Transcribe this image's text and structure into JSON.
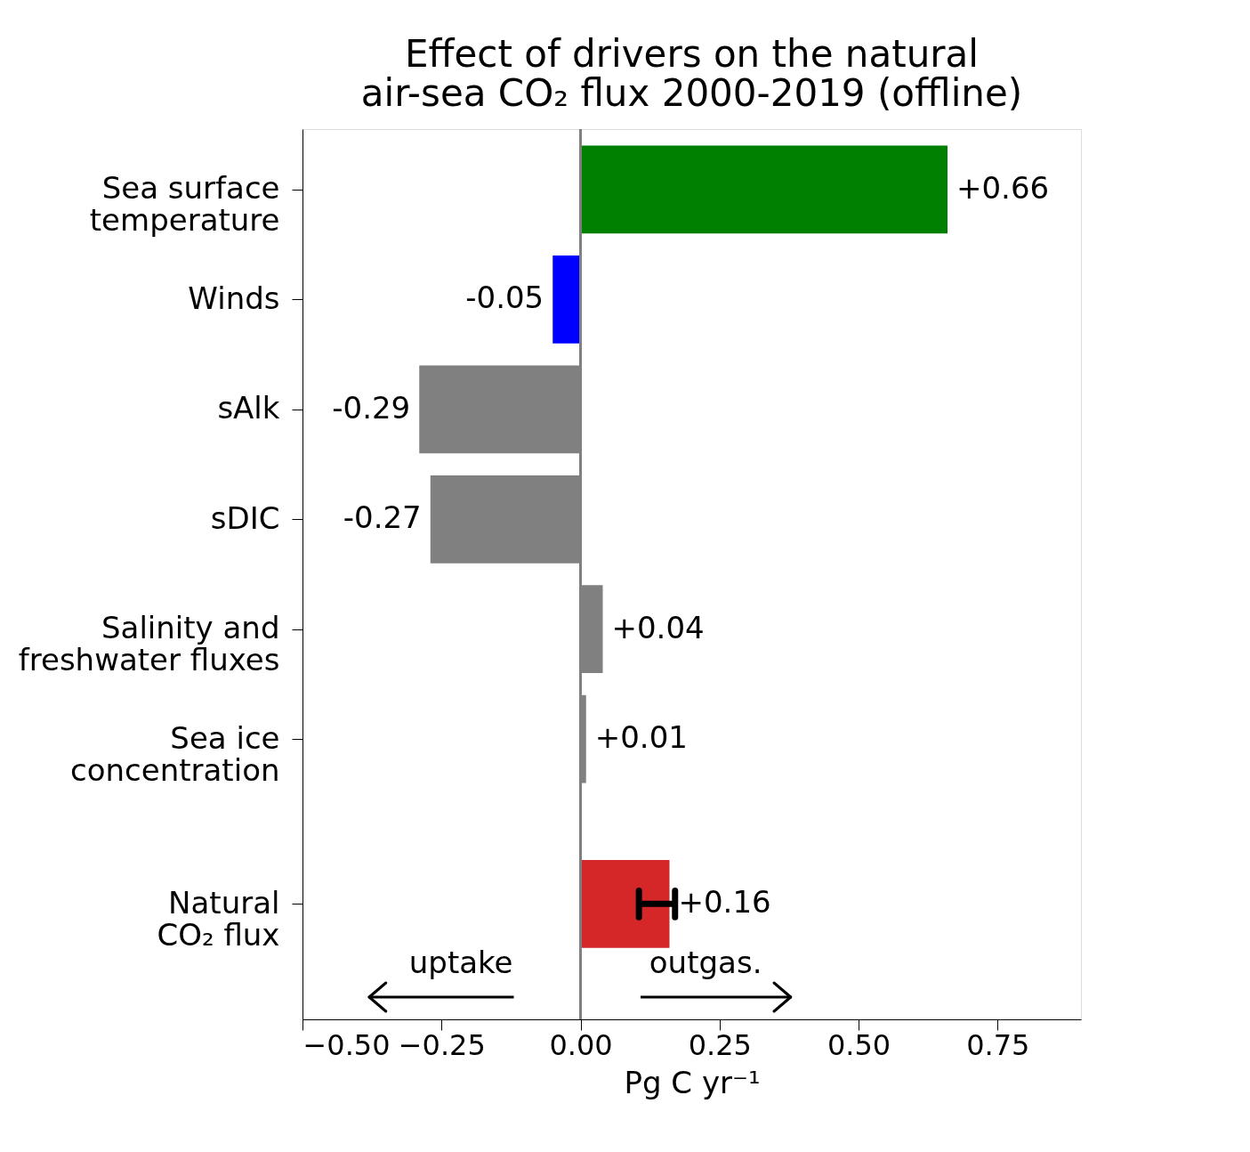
{
  "chart_data": {
    "type": "bar",
    "orientation": "horizontal",
    "title": "Effect of drivers on the natural\nair-sea CO₂ flux 2000-2019 (offline)",
    "xlabel": "Pg C yr⁻¹",
    "categories": [
      "Sea surface\ntemperature",
      "Winds",
      "sAlk",
      "sDIC",
      "Salinity and\nfreshwater fluxes",
      "Sea ice\nconcentration",
      "Natural\nCO₂ flux"
    ],
    "values": [
      0.66,
      -0.05,
      -0.29,
      -0.27,
      0.04,
      0.01,
      0.16
    ],
    "colors": [
      "#008000",
      "#0000ff",
      "#808080",
      "#808080",
      "#808080",
      "#808080",
      "#d62728"
    ],
    "value_labels": [
      "+0.66",
      "-0.05",
      "-0.29",
      "-0.27",
      "+0.04",
      "+0.01",
      "+0.16"
    ],
    "errors": [
      null,
      null,
      null,
      null,
      null,
      null,
      [
        0.105,
        0.17
      ]
    ],
    "xlim": [
      -0.5,
      0.9
    ],
    "xticks": [
      {
        "value": -0.5,
        "label": "−0.50"
      },
      {
        "value": -0.25,
        "label": "−0.25"
      },
      {
        "value": 0,
        "label": "0.00"
      },
      {
        "value": 0.25,
        "label": "0.25"
      },
      {
        "value": 0.5,
        "label": "0.50"
      },
      {
        "value": 0.75,
        "label": "0.75"
      }
    ],
    "ref_lines": [
      {
        "axis": "x",
        "value": 0,
        "color": "#808080"
      }
    ],
    "annotations": [
      "uptake",
      "outgas."
    ],
    "grid": false,
    "legend": false
  }
}
